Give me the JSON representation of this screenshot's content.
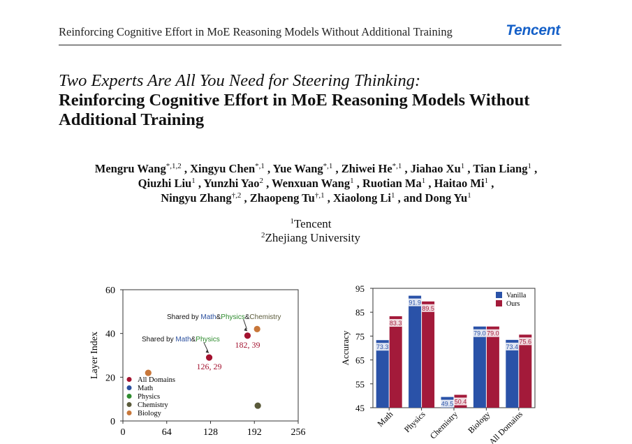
{
  "header": {
    "running_title": "Reinforcing Cognitive Effort in MoE Reasoning Models Without Additional Training",
    "brand": "Tencent"
  },
  "title": {
    "italic_part": "Two Experts Are All You Need for Steering Thinking",
    "colon": ":",
    "line2": "Reinforcing Cognitive Effort in MoE Reasoning Models Without",
    "line3": "Additional Training"
  },
  "authors": [
    {
      "name": "Mengru Wang",
      "sup": "*,1,2",
      "sep": " ,"
    },
    {
      "name": "Xingyu Chen",
      "sup": "*,1",
      "sep": " ,"
    },
    {
      "name": "Yue Wang",
      "sup": "*,1",
      "sep": " ,"
    },
    {
      "name": "Zhiwei He",
      "sup": "*,1",
      "sep": " ,"
    },
    {
      "name": "Jiahao Xu",
      "sup": "1",
      "sep": " ,"
    },
    {
      "name": "Tian Liang",
      "sup": "1",
      "sep": " ,"
    },
    {
      "name": "Qiuzhi Liu",
      "sup": "1",
      "sep": " ,"
    },
    {
      "name": "Yunzhi Yao",
      "sup": "2",
      "sep": " ,"
    },
    {
      "name": "Wenxuan Wang",
      "sup": "1",
      "sep": " ,"
    },
    {
      "name": "Ruotian Ma",
      "sup": "1",
      "sep": " ,"
    },
    {
      "name": "Haitao Mi",
      "sup": "1",
      "sep": " ,"
    },
    {
      "name": "Ningyu Zhang",
      "sup": "†,2",
      "sep": " ,"
    },
    {
      "name": "Zhaopeng Tu",
      "sup": "†,1",
      "sep": " ,"
    },
    {
      "name": "Xiaolong Li",
      "sup": "1",
      "sep": " , and"
    },
    {
      "name": "Dong Yu",
      "sup": "1",
      "sep": ""
    }
  ],
  "affiliations": [
    {
      "sup": "1",
      "name": "Tencent"
    },
    {
      "sup": "2",
      "name": "Zhejiang University"
    }
  ],
  "colors": {
    "all_domains": "#a3122f",
    "math": "#2a4f9e",
    "physics": "#2e8b2e",
    "chemistry": "#5a5a3a",
    "biology": "#c8773a",
    "vanilla": "#2a52a8",
    "ours": "#a31a3a",
    "brand": "#1560c8"
  },
  "chart_data": [
    {
      "type": "scatter",
      "ylabel": "Layer Index",
      "xlabel": "",
      "xlim": [
        0,
        256
      ],
      "ylim": [
        0,
        60
      ],
      "xticks": [
        0,
        64,
        128,
        192,
        256
      ],
      "yticks": [
        0,
        20,
        40,
        60
      ],
      "legend_position": "bottom-left",
      "series": [
        {
          "name": "All Domains",
          "color_key": "all_domains",
          "points": [
            {
              "x": 126,
              "y": 29
            },
            {
              "x": 182,
              "y": 39
            }
          ]
        },
        {
          "name": "Math",
          "color_key": "math",
          "points": []
        },
        {
          "name": "Physics",
          "color_key": "physics",
          "points": []
        },
        {
          "name": "Chemistry",
          "color_key": "chemistry",
          "points": [
            {
              "x": 197,
              "y": 7
            }
          ]
        },
        {
          "name": "Biology",
          "color_key": "biology",
          "points": [
            {
              "x": 37,
              "y": 22
            },
            {
              "x": 196,
              "y": 42
            }
          ]
        }
      ],
      "annotations": [
        {
          "text": "126, 29"
        },
        {
          "text": "182, 39"
        },
        {
          "text": "Shared by ",
          "math": "Math",
          "amp": "&",
          "physics": "Physics"
        },
        {
          "text": "Shared by ",
          "math": "Math",
          "amp1": "&",
          "physics": "Physics",
          "amp2": "&",
          "chemistry": "Chemistry"
        }
      ]
    },
    {
      "type": "bar",
      "ylabel": "Accuracy",
      "xlabel": "",
      "ylim": [
        45,
        95
      ],
      "yticks": [
        45,
        55,
        65,
        75,
        85,
        95
      ],
      "legend_position": "top-right",
      "categories": [
        "Math",
        "Physics",
        "Chemistry",
        "Biology",
        "All Domains"
      ],
      "series": [
        {
          "name": "Vanilla",
          "color_key": "vanilla",
          "values": [
            73.3,
            91.9,
            49.5,
            79.0,
            73.4
          ]
        },
        {
          "name": "Ours",
          "color_key": "ours",
          "values": [
            83.3,
            89.5,
            50.4,
            79.0,
            75.6
          ]
        }
      ]
    }
  ]
}
